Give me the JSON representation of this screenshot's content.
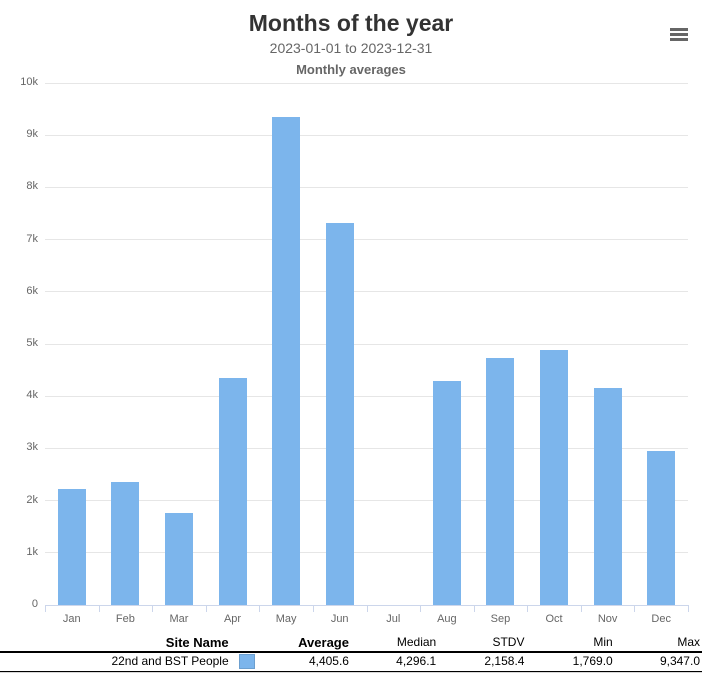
{
  "header": {
    "title": "Months of the year",
    "subtitle": "2023-01-01 to 2023-12-31",
    "subtitle2": "Monthly averages",
    "menu_icon": "hamburger-menu-icon"
  },
  "chart_data": {
    "type": "bar",
    "title": "Months of the year",
    "subtitle": "2023-01-01 to 2023-12-31",
    "secondary_subtitle": "Monthly averages",
    "categories": [
      "Jan",
      "Feb",
      "Mar",
      "Apr",
      "May",
      "Jun",
      "Jul",
      "Aug",
      "Sep",
      "Oct",
      "Nov",
      "Dec"
    ],
    "series": [
      {
        "name": "22nd and BST People",
        "color": "#7cb5ec",
        "values": [
          2230,
          2360,
          1769,
          4350,
          9347,
          7310,
          null,
          4300,
          4730,
          4880,
          4160,
          2950
        ]
      }
    ],
    "xlabel": "",
    "ylabel": "",
    "ylim": [
      0,
      10000
    ],
    "ytick_interval": 1000,
    "ytick_labels": [
      "0",
      "1k",
      "2k",
      "3k",
      "4k",
      "5k",
      "6k",
      "7k",
      "8k",
      "9k",
      "10k"
    ],
    "grid": true,
    "legend_position": "none",
    "missing_months": [
      "Jul"
    ]
  },
  "colors": {
    "bar": "#7cb5ec",
    "gridline": "#e6e6e6",
    "axis_line": "#ccd6eb",
    "label_gray": "#666666",
    "title_dark": "#333333"
  },
  "table": {
    "columns": [
      "Site Name",
      "Average",
      "Median",
      "STDV",
      "Min",
      "Max"
    ],
    "rows": [
      {
        "site_name": "22nd and BST People",
        "swatch_color": "#7cb5ec",
        "average": "4,405.6",
        "median": "4,296.1",
        "stdv": "2,158.4",
        "min": "1,769.0",
        "max": "9,347.0"
      }
    ]
  }
}
